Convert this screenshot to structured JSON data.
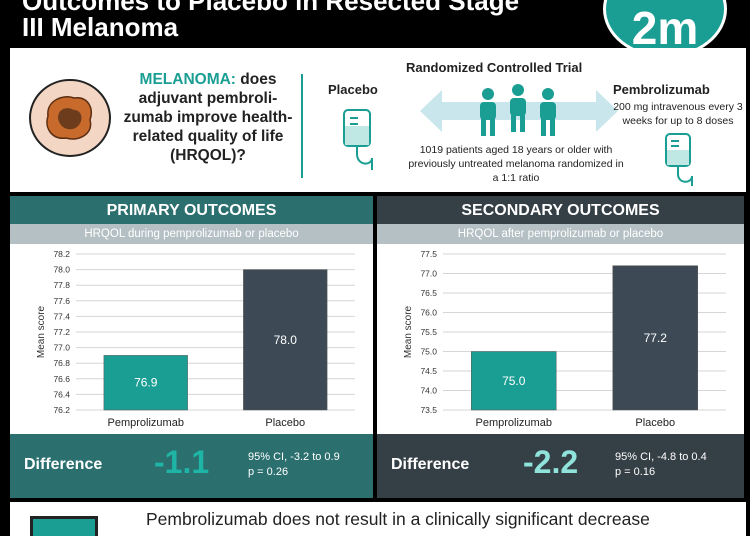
{
  "header": {
    "title_line1": "Outcomes to Placebo in Resected Stage",
    "title_line2": "III Melanoma",
    "logo_text": "2m"
  },
  "summary": {
    "question_prefix": "MELANOMA:",
    "question_rest": "does adjuvant pembroli-zumab improve health-related quality of life (HRQOL)?",
    "placebo_label": "Placebo",
    "rct_label": "Randomized Controlled Trial",
    "pembro_label": "Pembrolizumab",
    "pembro_dose": "200 mg intravenous every 3 weeks for up to 8 doses",
    "trial_description": "1019 patients aged 18 years or older with previously untreated melanoma randomized in a 1:1 ratio",
    "icons": [
      "melanoma-lesion-icon",
      "iv-bag-icon",
      "patients-icon",
      "double-arrow-icon"
    ]
  },
  "primary": {
    "title": "PRIMARY OUTCOMES",
    "subtitle": "HRQOL during pemprolizumab or placebo",
    "diff_label": "Difference",
    "diff_value": "-1.1",
    "ci": "95% CI, -3.2 to 0.9",
    "p": "p = 0.26"
  },
  "secondary": {
    "title": "SECONDARY OUTCOMES",
    "subtitle": "HRQOL after pemprolizumab or placebo",
    "diff_label": "Difference",
    "diff_value": "-2.2",
    "ci": "95% CI, -4.8 to 0.4",
    "p": "p = 0.16"
  },
  "conclusion": {
    "text": "Pembrolizumab does not result in a clinically significant decrease"
  },
  "colors": {
    "teal": "#1a9e93",
    "dark_bar": "#3d4a55",
    "primary_panel": "#2b6f6e",
    "secondary_panel": "#353f46"
  },
  "chart_data": [
    {
      "type": "bar",
      "categories": [
        "Pemprolizumab",
        "Placebo"
      ],
      "values": [
        76.9,
        78.0
      ],
      "value_labels": [
        "76.9",
        "78.0"
      ],
      "ylabel": "Mean score",
      "ylim": [
        76.2,
        78.2
      ],
      "yticks": [
        "76.2",
        "76.4",
        "76.6",
        "76.8",
        "77.0",
        "77.2",
        "77.4",
        "77.6",
        "77.8",
        "78.0",
        "78.2"
      ],
      "grid": true
    },
    {
      "type": "bar",
      "categories": [
        "Pemprolizumab",
        "Placebo"
      ],
      "values": [
        75.0,
        77.2
      ],
      "value_labels": [
        "75.0",
        "77.2"
      ],
      "ylabel": "Mean score",
      "ylim": [
        73.5,
        77.5
      ],
      "yticks": [
        "73.5",
        "74.0",
        "74.5",
        "75.0",
        "75.5",
        "76.0",
        "76.5",
        "77.0",
        "77.5"
      ],
      "grid": true
    }
  ]
}
